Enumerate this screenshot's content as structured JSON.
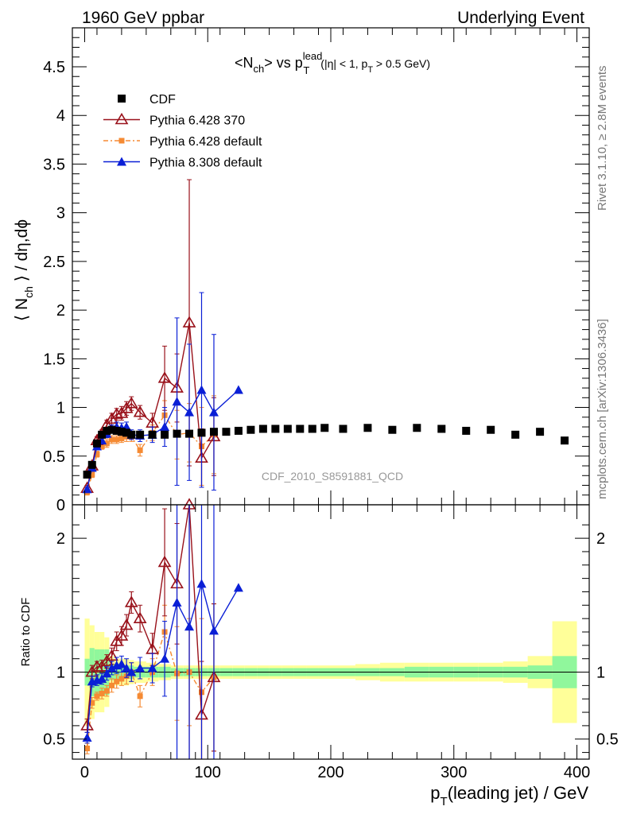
{
  "header": {
    "left": "1960 GeV ppbar",
    "right": "Underlying Event",
    "side_top": "Rivet 3.1.10, ≥ 2.8M events",
    "side_bottom": "mcplots.cern.ch [arXiv:1306.3436]",
    "watermark": "CDF_2010_S8591881_QCD"
  },
  "colors": {
    "cdf": "#000000",
    "p370": "#99111a",
    "pdef": "#f58a33",
    "p8": "#0a1fd6",
    "band_green": "#90f79c",
    "band_yellow": "#ffff99"
  },
  "chart_data": [
    {
      "type": "scatter",
      "title_parts": {
        "t1": "<N",
        "t2": "ch",
        "t3": "> vs p",
        "t4": "lead",
        "t5": "T",
        "t6": "(|η| < 1, p",
        "t7": "T",
        "t8": " > 0.5 GeV)"
      },
      "ylabel_parts": {
        "a": "⟨ N",
        "b": "ch",
        "c": " ⟩ / dη,dϕ"
      },
      "xlim": [
        -10,
        410
      ],
      "ylim": [
        0,
        4.9
      ],
      "yticks": [
        {
          "v": 0,
          "label": "0"
        },
        {
          "v": 0.5,
          "label": "0.5"
        },
        {
          "v": 1,
          "label": "1"
        },
        {
          "v": 1.5,
          "label": "1.5"
        },
        {
          "v": 2,
          "label": "2"
        },
        {
          "v": 2.5,
          "label": "2.5"
        },
        {
          "v": 3,
          "label": "3"
        },
        {
          "v": 3.5,
          "label": "3.5"
        },
        {
          "v": 4,
          "label": "4"
        },
        {
          "v": 4.5,
          "label": "4.5"
        }
      ],
      "legend": [
        {
          "key": "cdf",
          "label": "CDF"
        },
        {
          "key": "p370",
          "label": "Pythia 6.428 370"
        },
        {
          "key": "pdef",
          "label": "Pythia 6.428 default"
        },
        {
          "key": "p8",
          "label": "Pythia 8.308 default"
        }
      ],
      "series": [
        {
          "key": "cdf",
          "name": "CDF",
          "points": [
            [
              2,
              0.31
            ],
            [
              6,
              0.41
            ],
            [
              10,
              0.63
            ],
            [
              14,
              0.72
            ],
            [
              18,
              0.76
            ],
            [
              22,
              0.77
            ],
            [
              26,
              0.76
            ],
            [
              30,
              0.75
            ],
            [
              34,
              0.74
            ],
            [
              38,
              0.72
            ],
            [
              45,
              0.72
            ],
            [
              55,
              0.72
            ],
            [
              65,
              0.72
            ],
            [
              75,
              0.73
            ],
            [
              85,
              0.73
            ],
            [
              95,
              0.74
            ],
            [
              105,
              0.75
            ],
            [
              115,
              0.75
            ],
            [
              125,
              0.76
            ],
            [
              135,
              0.77
            ],
            [
              145,
              0.78
            ],
            [
              155,
              0.78
            ],
            [
              165,
              0.78
            ],
            [
              175,
              0.78
            ],
            [
              185,
              0.78
            ],
            [
              195,
              0.79
            ],
            [
              210,
              0.78
            ],
            [
              230,
              0.79
            ],
            [
              250,
              0.77
            ],
            [
              270,
              0.79
            ],
            [
              290,
              0.78
            ],
            [
              310,
              0.76
            ],
            [
              330,
              0.77
            ],
            [
              350,
              0.72
            ],
            [
              370,
              0.75
            ],
            [
              390,
              0.66
            ]
          ]
        },
        {
          "key": "p370",
          "name": "Pythia 6.428 370",
          "points": [
            [
              2,
              0.17,
              0.03
            ],
            [
              6,
              0.4,
              0.04
            ],
            [
              10,
              0.66,
              0.04
            ],
            [
              14,
              0.73,
              0.04
            ],
            [
              18,
              0.82,
              0.05
            ],
            [
              22,
              0.88,
              0.06
            ],
            [
              26,
              0.93,
              0.06
            ],
            [
              30,
              0.94,
              0.07
            ],
            [
              34,
              0.99,
              0.07
            ],
            [
              38,
              1.04,
              0.07
            ],
            [
              45,
              0.95,
              0.07
            ],
            [
              55,
              0.84,
              0.1
            ],
            [
              65,
              1.3,
              0.33
            ],
            [
              75,
              1.2,
              0.35
            ],
            [
              85,
              1.87,
              1.47
            ],
            [
              95,
              0.48,
              0.3
            ],
            [
              105,
              0.7,
              0.4
            ]
          ]
        },
        {
          "key": "pdef",
          "name": "Pythia 6.428 default",
          "points": [
            [
              2,
              0.13,
              0.03
            ],
            [
              6,
              0.31,
              0.03
            ],
            [
              10,
              0.52,
              0.03
            ],
            [
              14,
              0.6,
              0.03
            ],
            [
              18,
              0.63,
              0.04
            ],
            [
              22,
              0.67,
              0.04
            ],
            [
              26,
              0.67,
              0.04
            ],
            [
              30,
              0.68,
              0.04
            ],
            [
              34,
              0.7,
              0.05
            ],
            [
              38,
              0.7,
              0.05
            ],
            [
              45,
              0.56,
              0.06
            ],
            [
              55,
              0.74,
              0.08
            ],
            [
              65,
              0.92,
              0.15
            ],
            [
              75,
              0.72,
              0.25
            ],
            [
              85,
              0.74,
              0.3
            ],
            [
              95,
              0.6,
              0.4
            ],
            [
              105,
              0.72,
              0.4
            ]
          ]
        },
        {
          "key": "p8",
          "name": "Pythia 8.308 default",
          "points": [
            [
              2,
              0.16,
              0.02
            ],
            [
              6,
              0.38,
              0.03
            ],
            [
              10,
              0.6,
              0.03
            ],
            [
              14,
              0.66,
              0.03
            ],
            [
              18,
              0.73,
              0.04
            ],
            [
              22,
              0.78,
              0.04
            ],
            [
              26,
              0.8,
              0.05
            ],
            [
              30,
              0.79,
              0.05
            ],
            [
              34,
              0.8,
              0.05
            ],
            [
              38,
              0.72,
              0.05
            ],
            [
              45,
              0.71,
              0.06
            ],
            [
              55,
              0.72,
              0.08
            ],
            [
              65,
              0.8,
              0.2
            ],
            [
              75,
              1.06,
              0.86
            ],
            [
              85,
              0.95,
              0.7
            ],
            [
              95,
              1.18,
              1.0
            ],
            [
              105,
              0.95,
              0.8
            ],
            [
              125,
              1.18,
              0
            ]
          ]
        }
      ]
    },
    {
      "type": "scatter",
      "ylabel": "Ratio to CDF",
      "xlabel_parts": {
        "a": "p",
        "b": "T",
        "c": "(leading jet) / GeV"
      },
      "xlim": [
        -10,
        410
      ],
      "ylim": [
        0.35,
        2.25
      ],
      "xticks": [
        {
          "v": 0,
          "label": "0"
        },
        {
          "v": 100,
          "label": "100"
        },
        {
          "v": 200,
          "label": "200"
        },
        {
          "v": 300,
          "label": "300"
        },
        {
          "v": 400,
          "label": "400"
        }
      ],
      "yticks": [
        {
          "v": 0.5,
          "label": "0.5"
        },
        {
          "v": 1,
          "label": "1"
        },
        {
          "v": 2,
          "label": "2"
        }
      ],
      "band_edges": [
        0,
        4,
        8,
        12,
        16,
        20,
        24,
        28,
        32,
        36,
        40,
        50,
        60,
        70,
        80,
        90,
        100,
        110,
        120,
        130,
        140,
        150,
        160,
        170,
        180,
        190,
        200,
        220,
        240,
        260,
        280,
        300,
        320,
        340,
        360,
        380,
        400
      ],
      "band_yellow": [
        0.4,
        0.35,
        0.3,
        0.3,
        0.26,
        0.12,
        0.1,
        0.1,
        0.1,
        0.09,
        0.08,
        0.07,
        0.06,
        0.05,
        0.05,
        0.05,
        0.05,
        0.05,
        0.05,
        0.05,
        0.05,
        0.05,
        0.05,
        0.05,
        0.05,
        0.05,
        0.05,
        0.06,
        0.07,
        0.07,
        0.07,
        0.07,
        0.07,
        0.08,
        0.12,
        0.38
      ],
      "band_green": [
        0.1,
        0.18,
        0.17,
        0.17,
        0.17,
        0.06,
        0.06,
        0.05,
        0.05,
        0.05,
        0.04,
        0.04,
        0.04,
        0.03,
        0.03,
        0.03,
        0.03,
        0.03,
        0.03,
        0.03,
        0.03,
        0.03,
        0.03,
        0.03,
        0.03,
        0.03,
        0.03,
        0.03,
        0.03,
        0.04,
        0.04,
        0.04,
        0.04,
        0.04,
        0.05,
        0.12
      ],
      "series": [
        {
          "key": "p370",
          "name": "Pythia 6.428 370",
          "points": [
            [
              2,
              0.6,
              0.05
            ],
            [
              6,
              1.0,
              0.05
            ],
            [
              10,
              1.04,
              0.04
            ],
            [
              14,
              1.04,
              0.05
            ],
            [
              18,
              1.08,
              0.05
            ],
            [
              22,
              1.12,
              0.06
            ],
            [
              26,
              1.23,
              0.07
            ],
            [
              30,
              1.27,
              0.07
            ],
            [
              34,
              1.35,
              0.08
            ],
            [
              38,
              1.52,
              0.08
            ],
            [
              45,
              1.4,
              0.1
            ],
            [
              55,
              1.17,
              0.12
            ],
            [
              65,
              1.82,
              0.4
            ],
            [
              75,
              1.66,
              0.45
            ],
            [
              85,
              2.25,
              1.9
            ],
            [
              95,
              0.68,
              0.4
            ],
            [
              105,
              0.96,
              0.55
            ]
          ]
        },
        {
          "key": "pdef",
          "name": "Pythia 6.428 default",
          "points": [
            [
              2,
              0.43,
              0.04
            ],
            [
              6,
              0.77,
              0.04
            ],
            [
              10,
              0.82,
              0.03
            ],
            [
              14,
              0.84,
              0.04
            ],
            [
              18,
              0.86,
              0.04
            ],
            [
              22,
              0.9,
              0.05
            ],
            [
              26,
              0.93,
              0.05
            ],
            [
              30,
              0.95,
              0.05
            ],
            [
              34,
              0.97,
              0.06
            ],
            [
              38,
              1.0,
              0.07
            ],
            [
              45,
              0.82,
              0.08
            ],
            [
              55,
              1.0,
              0.1
            ],
            [
              65,
              1.3,
              0.2
            ],
            [
              75,
              0.99,
              0.35
            ],
            [
              85,
              1.0,
              0.4
            ],
            [
              95,
              0.85,
              0.55
            ],
            [
              105,
              0.96,
              0.55
            ]
          ]
        },
        {
          "key": "p8",
          "name": "Pythia 8.308 default",
          "points": [
            [
              2,
              0.51,
              0.04
            ],
            [
              6,
              0.93,
              0.04
            ],
            [
              10,
              0.94,
              0.04
            ],
            [
              14,
              0.95,
              0.04
            ],
            [
              18,
              0.99,
              0.05
            ],
            [
              22,
              1.03,
              0.05
            ],
            [
              26,
              1.05,
              0.06
            ],
            [
              30,
              1.06,
              0.06
            ],
            [
              34,
              1.03,
              0.07
            ],
            [
              38,
              1.0,
              0.07
            ],
            [
              45,
              1.03,
              0.08
            ],
            [
              55,
              1.03,
              0.11
            ],
            [
              65,
              1.1,
              0.28
            ],
            [
              75,
              1.52,
              1.2
            ],
            [
              85,
              1.34,
              1.0
            ],
            [
              95,
              1.66,
              1.4
            ],
            [
              105,
              1.31,
              1.1
            ],
            [
              125,
              1.63,
              0
            ]
          ]
        }
      ]
    }
  ]
}
